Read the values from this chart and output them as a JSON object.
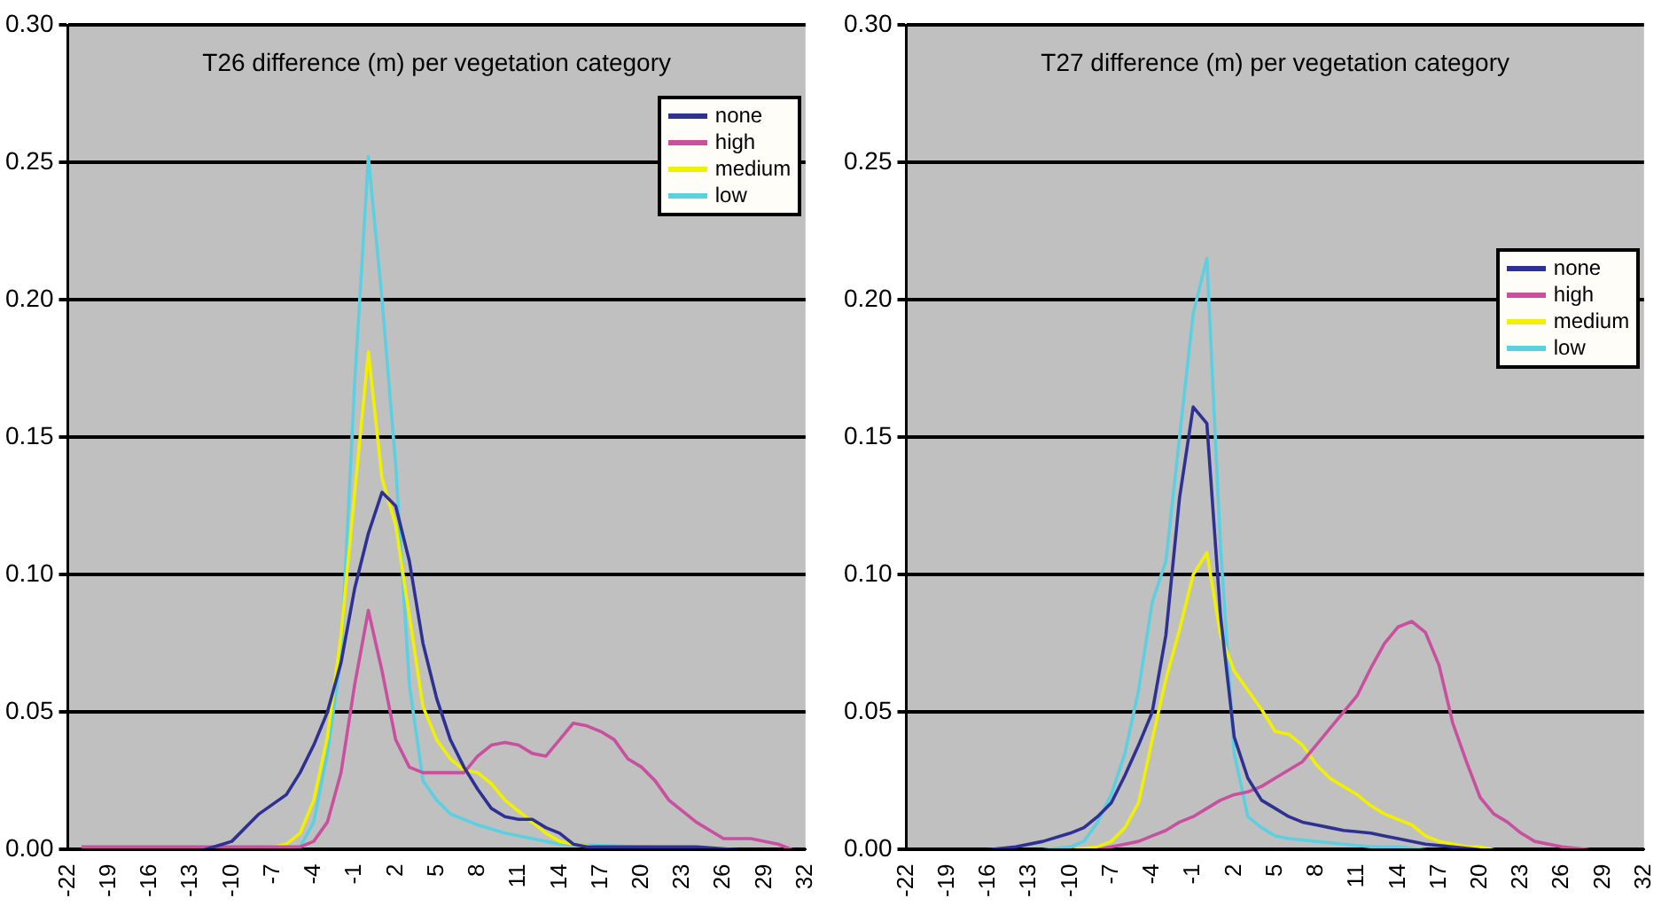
{
  "chart_data": [
    {
      "type": "line",
      "title": "T26 difference (m) per vegetation category",
      "xlim": [
        -22,
        32
      ],
      "xticks": [
        -22,
        -19,
        -16,
        -13,
        -10,
        -7,
        -4,
        -1,
        2,
        5,
        8,
        11,
        14,
        17,
        20,
        23,
        26,
        29,
        32
      ],
      "ylim": [
        0,
        0.3
      ],
      "yticks": [
        {
          "value": 0,
          "label": "0.00"
        },
        {
          "value": 0.05,
          "label": "0.05"
        },
        {
          "value": 0.1,
          "label": "0.10"
        },
        {
          "value": 0.15,
          "label": "0.15"
        },
        {
          "value": 0.2,
          "label": "0.20"
        },
        {
          "value": 0.25,
          "label": "0.25"
        },
        {
          "value": 0.3,
          "label": "0.30"
        }
      ],
      "grid": "y",
      "legend": "top right",
      "marker": "none",
      "series": [
        {
          "name": "none",
          "color": "#2e3192",
          "x": [
            -12,
            -10,
            -8,
            -6,
            -5,
            -4,
            -3,
            -2,
            -1,
            0,
            1,
            2,
            3,
            4,
            5,
            6,
            7,
            8,
            9,
            10,
            11,
            12,
            13,
            14,
            15,
            16,
            20,
            24,
            27
          ],
          "values": [
            0,
            0.003,
            0.013,
            0.02,
            0.028,
            0.038,
            0.05,
            0.068,
            0.095,
            0.115,
            0.13,
            0.125,
            0.105,
            0.075,
            0.055,
            0.04,
            0.03,
            0.022,
            0.015,
            0.012,
            0.011,
            0.011,
            0.008,
            0.006,
            0.002,
            0.001,
            0.001,
            0.001,
            0
          ]
        },
        {
          "name": "high",
          "color": "#c8509f",
          "x": [
            -21,
            -15,
            -10,
            -5,
            -4,
            -3,
            -2,
            -1,
            0,
            1,
            2,
            3,
            4,
            5,
            6,
            7,
            8,
            9,
            10,
            11,
            12,
            13,
            14,
            15,
            16,
            17,
            18,
            19,
            20,
            21,
            22,
            24,
            26,
            28,
            30,
            31
          ],
          "values": [
            0.001,
            0.001,
            0.001,
            0.001,
            0.003,
            0.01,
            0.028,
            0.06,
            0.087,
            0.065,
            0.04,
            0.03,
            0.028,
            0.028,
            0.028,
            0.028,
            0.034,
            0.038,
            0.039,
            0.038,
            0.035,
            0.034,
            0.04,
            0.046,
            0.045,
            0.043,
            0.04,
            0.033,
            0.03,
            0.025,
            0.018,
            0.01,
            0.004,
            0.004,
            0.002,
            0
          ]
        },
        {
          "name": "medium",
          "color": "#f0f000",
          "x": [
            -8,
            -6,
            -5,
            -4,
            -3,
            -2,
            -1,
            0,
            1,
            2,
            3,
            4,
            5,
            6,
            7,
            8,
            9,
            10,
            11,
            12,
            13,
            14,
            15,
            18
          ],
          "values": [
            0,
            0.002,
            0.006,
            0.018,
            0.041,
            0.078,
            0.13,
            0.181,
            0.135,
            0.118,
            0.085,
            0.052,
            0.04,
            0.033,
            0.029,
            0.028,
            0.024,
            0.018,
            0.014,
            0.01,
            0.006,
            0.003,
            0.002,
            0
          ]
        },
        {
          "name": "low",
          "color": "#5ccfe0",
          "x": [
            -7,
            -5,
            -4,
            -3,
            -2,
            -1,
            0,
            1,
            2,
            3,
            4,
            5,
            6,
            8,
            10,
            12,
            14,
            26
          ],
          "values": [
            0,
            0.001,
            0.01,
            0.035,
            0.07,
            0.17,
            0.252,
            0.2,
            0.14,
            0.06,
            0.025,
            0.018,
            0.013,
            0.009,
            0.006,
            0.004,
            0.002,
            0
          ]
        }
      ]
    },
    {
      "type": "line",
      "title": "T27 difference (m) per vegetation category",
      "xlim": [
        -22,
        32
      ],
      "xticks": [
        -22,
        -19,
        -16,
        -13,
        -10,
        -7,
        -4,
        -1,
        2,
        5,
        8,
        11,
        14,
        17,
        20,
        23,
        26,
        29,
        32
      ],
      "ylim": [
        0,
        0.3
      ],
      "yticks": [
        {
          "value": 0,
          "label": "0.00"
        },
        {
          "value": 0.05,
          "label": "0.05"
        },
        {
          "value": 0.1,
          "label": "0.10"
        },
        {
          "value": 0.15,
          "label": "0.15"
        },
        {
          "value": 0.2,
          "label": "0.20"
        },
        {
          "value": 0.25,
          "label": "0.25"
        },
        {
          "value": 0.3,
          "label": "0.30"
        }
      ],
      "grid": "y",
      "legend": "right",
      "marker": "none",
      "series": [
        {
          "name": "none",
          "color": "#2e3192",
          "x": [
            -16,
            -14,
            -12,
            -10,
            -9,
            -8,
            -7,
            -6,
            -5,
            -4,
            -3,
            -2,
            -1,
            0,
            1,
            2,
            3,
            4,
            5,
            6,
            7,
            8,
            9,
            10,
            12,
            13,
            14,
            16,
            18,
            20
          ],
          "values": [
            0,
            0.001,
            0.003,
            0.006,
            0.008,
            0.012,
            0.017,
            0.027,
            0.038,
            0.05,
            0.078,
            0.128,
            0.161,
            0.155,
            0.085,
            0.041,
            0.026,
            0.018,
            0.015,
            0.012,
            0.01,
            0.009,
            0.008,
            0.007,
            0.006,
            0.005,
            0.004,
            0.002,
            0.001,
            0
          ]
        },
        {
          "name": "high",
          "color": "#c8509f",
          "x": [
            -8,
            -7,
            -6,
            -5,
            -4,
            -3,
            -2,
            -1,
            0,
            1,
            2,
            3,
            4,
            5,
            6,
            7,
            8,
            9,
            10,
            11,
            12,
            13,
            14,
            15,
            16,
            17,
            18,
            19,
            20,
            21,
            22,
            23,
            24,
            26,
            28
          ],
          "values": [
            0,
            0.001,
            0.002,
            0.003,
            0.005,
            0.007,
            0.01,
            0.012,
            0.015,
            0.018,
            0.02,
            0.021,
            0.023,
            0.026,
            0.029,
            0.032,
            0.038,
            0.044,
            0.05,
            0.056,
            0.066,
            0.075,
            0.081,
            0.083,
            0.079,
            0.067,
            0.046,
            0.032,
            0.019,
            0.013,
            0.01,
            0.006,
            0.003,
            0.001,
            0
          ]
        },
        {
          "name": "medium",
          "color": "#f0f000",
          "x": [
            -10,
            -8,
            -7,
            -6,
            -5,
            -4,
            -3,
            -2,
            -1,
            0,
            1,
            2,
            3,
            4,
            5,
            6,
            7,
            8,
            9,
            10,
            11,
            12,
            13,
            14,
            15,
            16,
            17,
            18,
            19,
            20,
            21
          ],
          "values": [
            0,
            0.001,
            0.003,
            0.008,
            0.017,
            0.04,
            0.062,
            0.08,
            0.1,
            0.108,
            0.078,
            0.065,
            0.058,
            0.051,
            0.043,
            0.042,
            0.038,
            0.031,
            0.026,
            0.023,
            0.02,
            0.016,
            0.013,
            0.011,
            0.009,
            0.005,
            0.003,
            0.002,
            0.001,
            0.001,
            0
          ]
        },
        {
          "name": "low",
          "color": "#5ccfe0",
          "x": [
            -12,
            -10,
            -9,
            -8,
            -7,
            -6,
            -5,
            -4,
            -3,
            -2,
            -1,
            0,
            1,
            2,
            3,
            4,
            5,
            6,
            8,
            10,
            12,
            14,
            16
          ],
          "values": [
            0,
            0.001,
            0.003,
            0.01,
            0.02,
            0.035,
            0.058,
            0.09,
            0.105,
            0.15,
            0.195,
            0.215,
            0.11,
            0.035,
            0.012,
            0.008,
            0.005,
            0.004,
            0.003,
            0.002,
            0.001,
            0.001,
            0
          ]
        }
      ]
    }
  ]
}
